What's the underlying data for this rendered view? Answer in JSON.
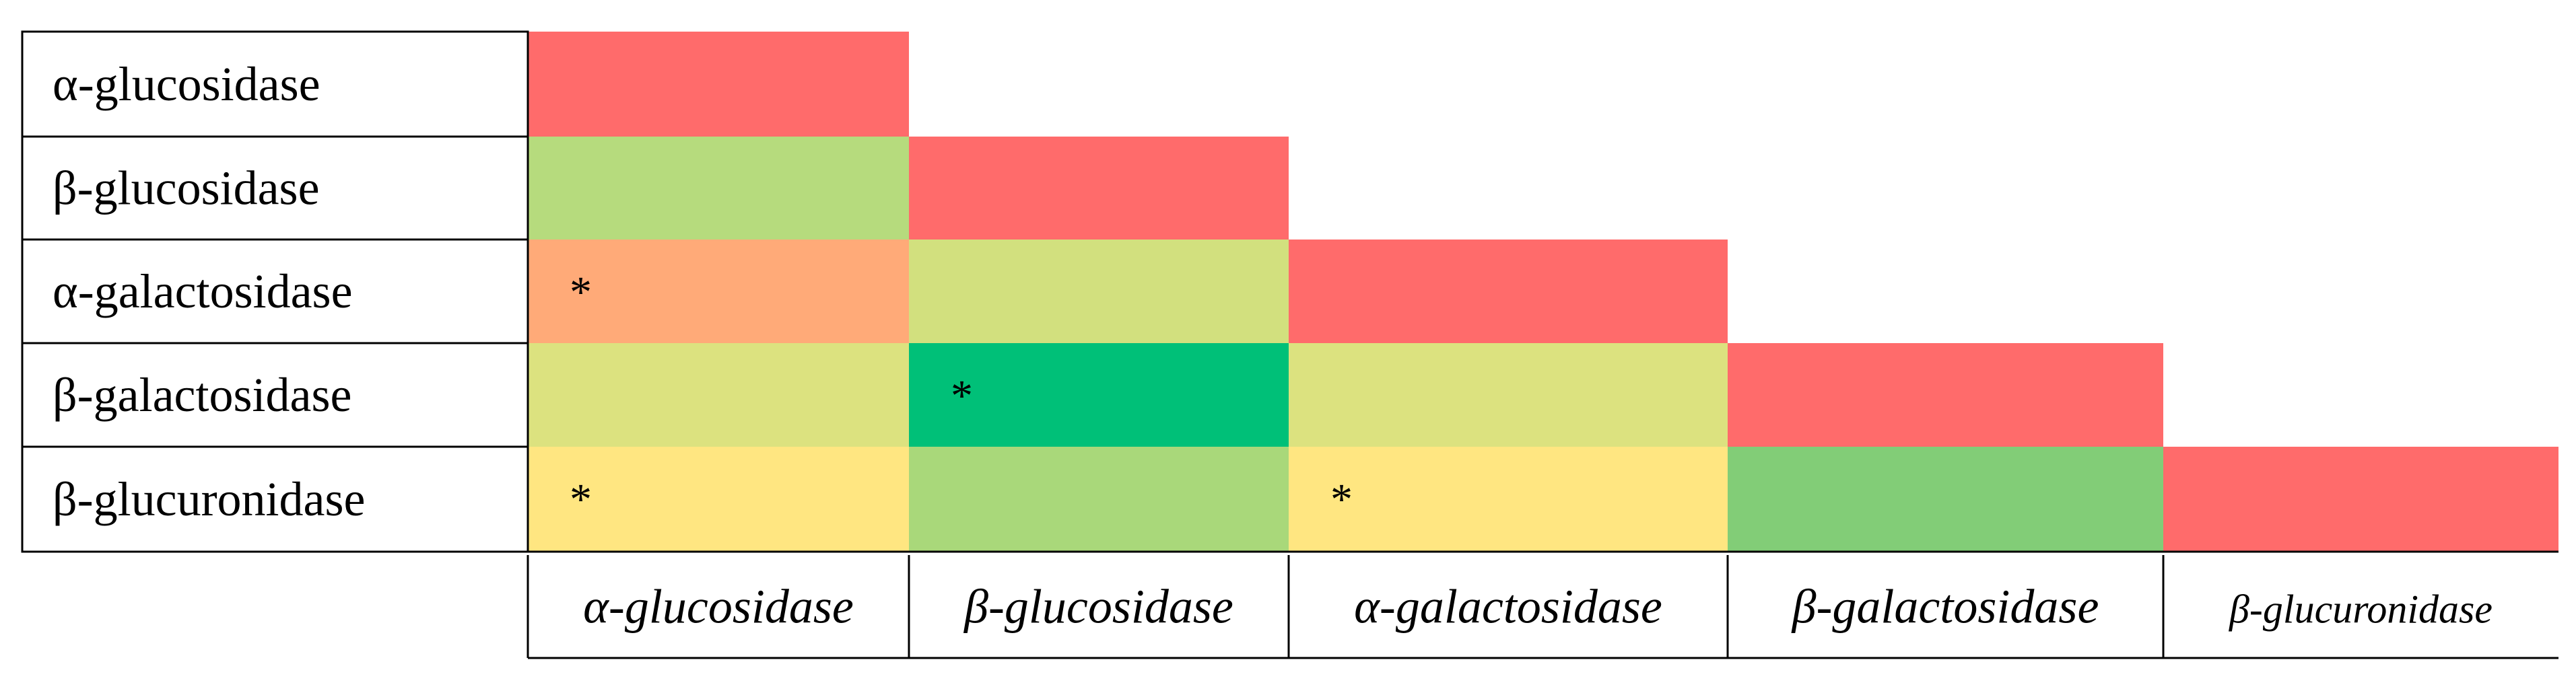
{
  "chart_data": {
    "type": "heatmap",
    "rows": [
      "α-glucosidase",
      "β-glucosidase",
      "α-galactosidase",
      "β-galactosidase",
      "β-glucuronidase"
    ],
    "columns": [
      "α-glucosidase",
      "β-glucosidase",
      "α-galactosidase",
      "β-galactosidase",
      "β-glucuronidase"
    ],
    "cells": [
      [
        {
          "color": "#FF6B6B",
          "mark": ""
        },
        null,
        null,
        null,
        null
      ],
      [
        {
          "color": "#B6DB7D",
          "mark": ""
        },
        {
          "color": "#FF6B6B",
          "mark": ""
        },
        null,
        null,
        null
      ],
      [
        {
          "color": "#FFAA78",
          "mark": "*"
        },
        {
          "color": "#D2E07E",
          "mark": ""
        },
        {
          "color": "#FF6B6B",
          "mark": ""
        },
        null,
        null
      ],
      [
        {
          "color": "#DCE27F",
          "mark": ""
        },
        {
          "color": "#00C078",
          "mark": "*"
        },
        {
          "color": "#DCE27F",
          "mark": ""
        },
        {
          "color": "#FF6B6B",
          "mark": ""
        },
        null
      ],
      [
        {
          "color": "#FFE681",
          "mark": "*"
        },
        {
          "color": "#A9D87A",
          "mark": ""
        },
        {
          "color": "#FFE681",
          "mark": "*"
        },
        {
          "color": "#82CD77",
          "mark": ""
        },
        {
          "color": "#FF6B6B",
          "mark": ""
        }
      ]
    ],
    "legend": "none",
    "grid": false
  }
}
